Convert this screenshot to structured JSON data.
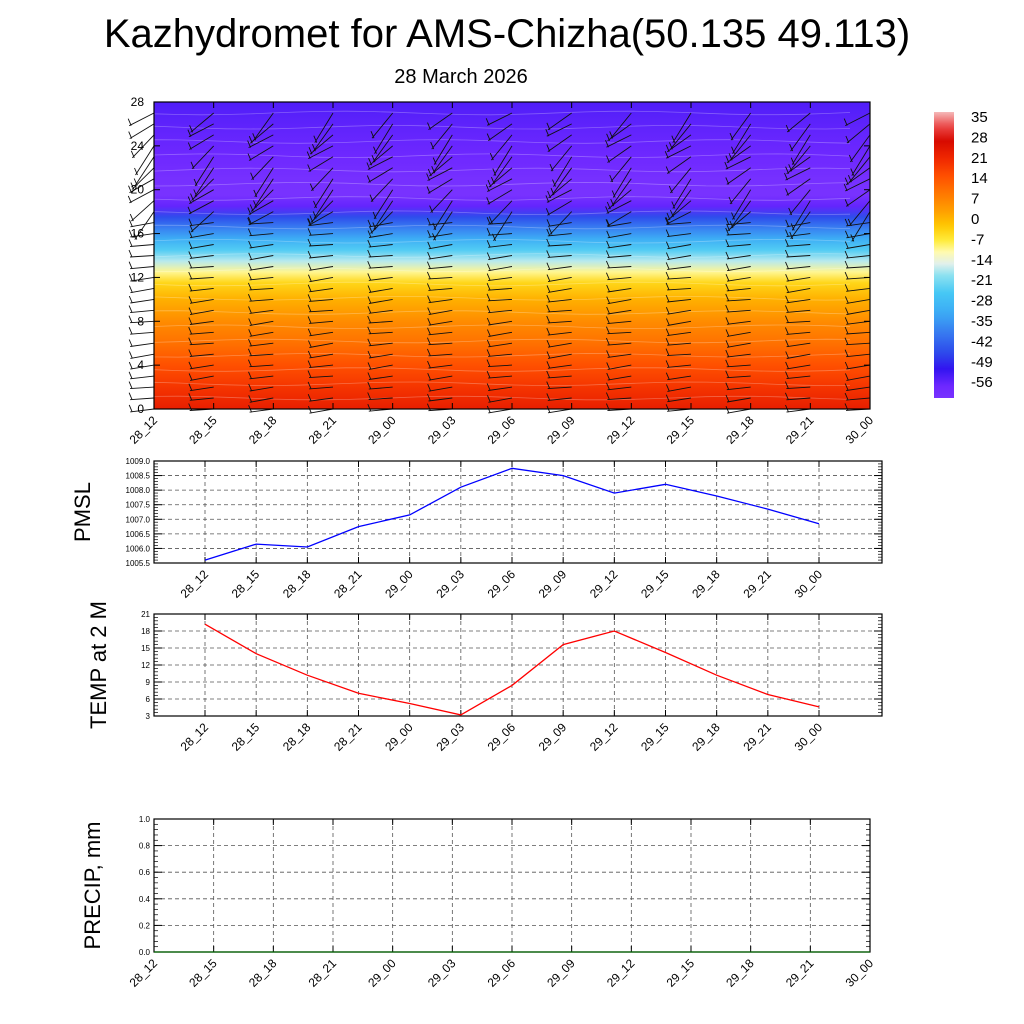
{
  "title": "Kazhydromet for AMS-Chizha(50.135 49.113)",
  "subtitle": "28 March 2026",
  "time_labels": [
    "28_12",
    "28_15",
    "28_18",
    "28_21",
    "29_00",
    "29_03",
    "29_06",
    "29_09",
    "29_12",
    "29_15",
    "29_18",
    "29_21",
    "30_00"
  ],
  "chart_data": [
    {
      "type": "heatmap",
      "name": "upper-air-section",
      "xlabel": "",
      "ylabel": "",
      "categories": [
        "28_12",
        "28_15",
        "28_18",
        "28_21",
        "29_00",
        "29_03",
        "29_06",
        "29_09",
        "29_12",
        "29_15",
        "29_18",
        "29_21",
        "30_00"
      ],
      "ylim": [
        0,
        28
      ],
      "yticks": [
        0,
        4,
        8,
        12,
        16,
        20,
        24,
        28
      ],
      "colorbar_labels": [
        "35",
        "28",
        "21",
        "14",
        "7",
        "0",
        "-7",
        "-14",
        "-21",
        "-28",
        "-35",
        "-42",
        "-49",
        "-56"
      ],
      "colorbar_range": [
        -60,
        38
      ],
      "temperature_profile": [
        {
          "level": 0,
          "value": 24
        },
        {
          "level": 2,
          "value": 20
        },
        {
          "level": 4,
          "value": 16
        },
        {
          "level": 6,
          "value": 11
        },
        {
          "level": 8,
          "value": 7
        },
        {
          "level": 10,
          "value": 2
        },
        {
          "level": 11.5,
          "value": -3
        },
        {
          "level": 12.5,
          "value": -9
        },
        {
          "level": 13.5,
          "value": -16
        },
        {
          "level": 14.5,
          "value": -23
        },
        {
          "level": 15.5,
          "value": -30
        },
        {
          "level": 16.5,
          "value": -37
        },
        {
          "level": 17.5,
          "value": -44
        },
        {
          "level": 18.5,
          "value": -55
        },
        {
          "level": 19.5,
          "value": -60
        },
        {
          "level": 21,
          "value": -59
        },
        {
          "level": 23,
          "value": -56
        },
        {
          "level": 25,
          "value": -55
        },
        {
          "level": 28,
          "value": -53
        }
      ],
      "wind_barbs": "black wind barbs at each time step and height level"
    },
    {
      "type": "line",
      "name": "pmsl",
      "ylabel": "PMSL",
      "categories": [
        "28_12",
        "28_15",
        "28_18",
        "28_21",
        "29_00",
        "29_03",
        "29_06",
        "29_09",
        "29_12",
        "29_15",
        "29_18",
        "29_21",
        "30_00"
      ],
      "values": [
        1005.6,
        1006.15,
        1006.05,
        1006.75,
        1007.15,
        1008.1,
        1008.75,
        1008.5,
        1007.9,
        1008.2,
        1007.8,
        1007.35,
        1006.85
      ],
      "ylim": [
        1005.5,
        1009.0
      ],
      "yticks": [
        "1005.5",
        "1006.0",
        "1006.5",
        "1007.0",
        "1007.5",
        "1008.0",
        "1008.5",
        "1009.0"
      ],
      "color": "#0000ff"
    },
    {
      "type": "line",
      "name": "temp-2m",
      "ylabel": "TEMP at 2 M",
      "categories": [
        "28_12",
        "28_15",
        "28_18",
        "28_21",
        "29_00",
        "29_03",
        "29_06",
        "29_09",
        "29_12",
        "29_15",
        "29_18",
        "29_21",
        "30_00"
      ],
      "values": [
        19.2,
        14.0,
        10.2,
        7.0,
        5.2,
        3.2,
        8.4,
        15.6,
        18.0,
        14.2,
        10.2,
        6.8,
        4.6
      ],
      "ylim": [
        3,
        21
      ],
      "yticks": [
        "3",
        "6",
        "9",
        "12",
        "15",
        "18",
        "21"
      ],
      "color": "#ff0000"
    },
    {
      "type": "line",
      "name": "precip",
      "ylabel": "PRECIP, mm",
      "categories": [
        "28_12",
        "28_15",
        "28_18",
        "28_21",
        "29_00",
        "29_03",
        "29_06",
        "29_09",
        "29_12",
        "29_15",
        "29_18",
        "29_21",
        "30_00"
      ],
      "values": [
        0,
        0,
        0,
        0,
        0,
        0,
        0,
        0,
        0,
        0,
        0,
        0,
        0
      ],
      "ylim": [
        0,
        1.0
      ],
      "yticks": [
        "0.0",
        "0.2",
        "0.4",
        "0.6",
        "0.8",
        "1.0"
      ],
      "color": "#006400"
    }
  ]
}
